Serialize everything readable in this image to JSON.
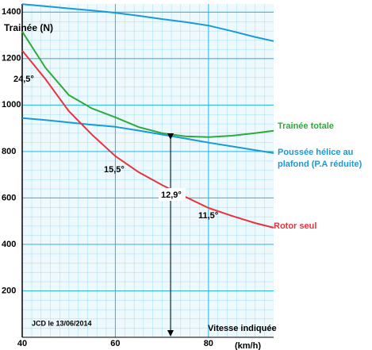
{
  "chart_data": {
    "type": "line",
    "title": "Trainée (N)",
    "x_label": "Vitesse indiquée",
    "x_unit": "(km/h)",
    "x": [
      40,
      45,
      50,
      55,
      60,
      65,
      70,
      75,
      80,
      85,
      90,
      94
    ],
    "series": [
      {
        "color": "#1a9ad6",
        "values": [
          1434,
          1425,
          1416,
          1407,
          1397,
          1384,
          1370,
          1357,
          1342,
          1318,
          1293,
          1275
        ]
      },
      {
        "name": "Trainée totale",
        "color": "#2eaa3c",
        "values": [
          1316,
          1160,
          1043,
          985,
          947,
          905,
          879,
          865,
          862,
          868,
          879,
          889
        ]
      },
      {
        "name": "Poussée hélice au plafond (P.A réduite)",
        "color": "#1a9ad6",
        "values": [
          944,
          935,
          925,
          915,
          906,
          890,
          873,
          856,
          838,
          822,
          806,
          793
        ]
      },
      {
        "name": "Rotor seul",
        "color": "#e8323c",
        "values": [
          1234,
          1111,
          974,
          872,
          780,
          711,
          656,
          605,
          557,
          523,
          492,
          472
        ]
      }
    ],
    "annotations": [
      "24,5°",
      "15,5°",
      "12,9°",
      "11,5°",
      "JCD le 13/06/2014"
    ],
    "xlim": [
      40,
      94
    ],
    "ylim": [
      0,
      1435
    ],
    "xticks": [
      40,
      60,
      80
    ],
    "yticks": [
      200,
      400,
      600,
      800,
      1000,
      1200,
      1400
    ],
    "grid": true
  }
}
